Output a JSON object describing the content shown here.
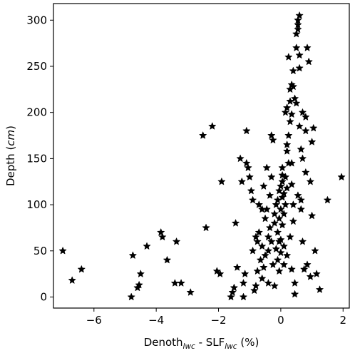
{
  "chart_data": {
    "type": "scatter",
    "marker": "star",
    "marker_color": "#000000",
    "xlabel": {
      "base": "Denoth",
      "sub1": "lwc",
      "mid": " - SLF",
      "sub2": "lwc",
      "tail": " (%)"
    },
    "ylabel": {
      "base": "Depth  (",
      "unit": "cm",
      "tail": ")"
    },
    "xlim": [
      -7.3,
      2.2
    ],
    "ylim": [
      -12,
      318
    ],
    "xticks": [
      -6,
      -4,
      -2,
      0,
      2
    ],
    "xtick_labels": [
      "−6",
      "−4",
      "−2",
      "0",
      "2"
    ],
    "yticks": [
      0,
      50,
      100,
      150,
      200,
      250,
      300
    ],
    "ytick_labels": [
      "0",
      "50",
      "100",
      "150",
      "200",
      "250",
      "300"
    ],
    "grid": false,
    "points": [
      [
        -7.0,
        50
      ],
      [
        -6.7,
        18
      ],
      [
        -6.4,
        30
      ],
      [
        -4.8,
        0
      ],
      [
        -4.75,
        45
      ],
      [
        -4.6,
        10
      ],
      [
        -4.55,
        13
      ],
      [
        -4.5,
        25
      ],
      [
        -4.3,
        55
      ],
      [
        -3.85,
        70
      ],
      [
        -3.8,
        65
      ],
      [
        -3.65,
        40
      ],
      [
        -3.4,
        15
      ],
      [
        -3.35,
        60
      ],
      [
        -3.2,
        15
      ],
      [
        -2.9,
        5
      ],
      [
        -2.5,
        175
      ],
      [
        -2.4,
        75
      ],
      [
        -2.2,
        185
      ],
      [
        -2.05,
        28
      ],
      [
        -1.95,
        25
      ],
      [
        -1.9,
        125
      ],
      [
        -1.6,
        0
      ],
      [
        -1.55,
        5
      ],
      [
        -1.5,
        10
      ],
      [
        -1.45,
        80
      ],
      [
        -1.4,
        32
      ],
      [
        -1.3,
        150
      ],
      [
        -1.25,
        125
      ],
      [
        -1.2,
        15
      ],
      [
        -1.2,
        0
      ],
      [
        -1.15,
        25
      ],
      [
        -1.1,
        180
      ],
      [
        -1.1,
        145
      ],
      [
        -1.05,
        140
      ],
      [
        -1.0,
        130
      ],
      [
        -0.95,
        115
      ],
      [
        -0.9,
        105
      ],
      [
        -0.85,
        7
      ],
      [
        -0.8,
        12
      ],
      [
        -0.8,
        65
      ],
      [
        -0.75,
        60
      ],
      [
        -0.75,
        28
      ],
      [
        -0.7,
        100
      ],
      [
        -0.7,
        70
      ],
      [
        -0.65,
        40
      ],
      [
        -0.6,
        55
      ],
      [
        -0.6,
        20
      ],
      [
        -0.55,
        32
      ],
      [
        -0.55,
        120
      ],
      [
        -0.5,
        45
      ],
      [
        -0.5,
        85
      ],
      [
        -0.45,
        95
      ],
      [
        -0.45,
        140
      ],
      [
        -0.4,
        65
      ],
      [
        -0.4,
        50
      ],
      [
        -0.35,
        75
      ],
      [
        -0.35,
        110
      ],
      [
        -0.3,
        60
      ],
      [
        -0.3,
        130
      ],
      [
        -0.3,
        175
      ],
      [
        -0.25,
        170
      ],
      [
        -0.25,
        35
      ],
      [
        -0.2,
        90
      ],
      [
        -0.2,
        80
      ],
      [
        -0.2,
        12
      ],
      [
        -0.15,
        100
      ],
      [
        -0.15,
        52
      ],
      [
        -0.1,
        105
      ],
      [
        -0.1,
        70
      ],
      [
        -0.1,
        40
      ],
      [
        -0.05,
        115
      ],
      [
        -0.05,
        85
      ],
      [
        -0.05,
        28
      ],
      [
        0.0,
        120
      ],
      [
        0.0,
        95
      ],
      [
        0.0,
        62
      ],
      [
        0.0,
        48
      ],
      [
        0.05,
        125
      ],
      [
        0.05,
        108
      ],
      [
        0.05,
        78
      ],
      [
        0.05,
        140
      ],
      [
        0.1,
        112
      ],
      [
        0.1,
        90
      ],
      [
        0.1,
        55
      ],
      [
        0.1,
        35
      ],
      [
        0.15,
        130
      ],
      [
        0.15,
        100
      ],
      [
        0.15,
        200
      ],
      [
        0.2,
        205
      ],
      [
        0.2,
        165
      ],
      [
        0.2,
        158
      ],
      [
        0.25,
        175
      ],
      [
        0.25,
        145
      ],
      [
        0.25,
        260
      ],
      [
        0.3,
        225
      ],
      [
        0.3,
        212
      ],
      [
        0.3,
        190
      ],
      [
        0.35,
        230
      ],
      [
        0.35,
        198
      ],
      [
        0.35,
        122
      ],
      [
        0.35,
        30
      ],
      [
        0.4,
        245
      ],
      [
        0.4,
        228
      ],
      [
        0.4,
        82
      ],
      [
        0.45,
        3
      ],
      [
        0.45,
        15
      ],
      [
        0.45,
        215
      ],
      [
        0.5,
        210
      ],
      [
        0.5,
        270
      ],
      [
        0.5,
        285
      ],
      [
        0.55,
        290
      ],
      [
        0.55,
        295
      ],
      [
        0.55,
        300
      ],
      [
        0.6,
        305
      ],
      [
        0.6,
        262
      ],
      [
        0.6,
        248
      ],
      [
        0.6,
        185
      ],
      [
        0.65,
        160
      ],
      [
        0.65,
        105
      ],
      [
        0.65,
        95
      ],
      [
        0.7,
        200
      ],
      [
        0.7,
        150
      ],
      [
        0.75,
        30
      ],
      [
        0.8,
        195
      ],
      [
        0.8,
        180
      ],
      [
        0.8,
        135
      ],
      [
        0.85,
        270
      ],
      [
        0.85,
        35
      ],
      [
        0.9,
        255
      ],
      [
        0.95,
        125
      ],
      [
        0.95,
        22
      ],
      [
        1.0,
        168
      ],
      [
        1.0,
        88
      ],
      [
        1.05,
        183
      ],
      [
        1.1,
        50
      ],
      [
        1.15,
        25
      ],
      [
        1.25,
        8
      ],
      [
        1.5,
        105
      ],
      [
        1.95,
        130
      ],
      [
        0.2,
        118
      ],
      [
        0.05,
        132
      ],
      [
        -0.05,
        60
      ],
      [
        0.3,
        65
      ],
      [
        0.2,
        45
      ],
      [
        0.4,
        100
      ],
      [
        0.55,
        110
      ],
      [
        -0.6,
        95
      ],
      [
        -0.4,
        15
      ],
      [
        -0.9,
        50
      ],
      [
        0.7,
        60
      ],
      [
        0.35,
        145
      ]
    ]
  }
}
